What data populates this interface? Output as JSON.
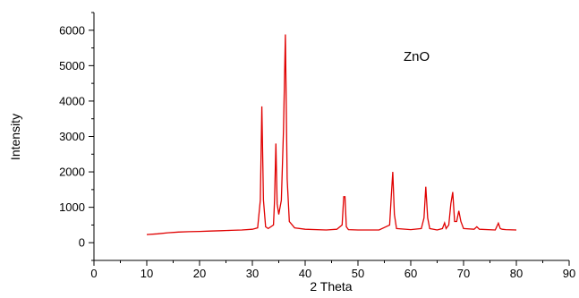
{
  "chart_data": {
    "type": "line",
    "xlabel": "2 Theta",
    "ylabel": "Intensity",
    "annotation": "ZnO",
    "xlim": [
      0,
      90
    ],
    "ylim": [
      -500,
      6500
    ],
    "x_ticks": [
      0,
      10,
      20,
      30,
      40,
      50,
      60,
      70,
      80,
      90
    ],
    "y_ticks": [
      0,
      1000,
      2000,
      3000,
      4000,
      5000,
      6000
    ],
    "grid": false,
    "line_color": "#e00000",
    "series": [
      {
        "x": [
          10,
          12,
          14,
          16,
          18,
          20,
          22,
          24,
          26,
          28,
          30,
          31,
          31.5,
          31.8,
          32.1,
          32.5,
          33,
          34,
          34.2,
          34.45,
          34.7,
          35,
          35.5,
          35.9,
          36.25,
          36.6,
          37,
          38,
          40,
          44,
          46,
          47,
          47.3,
          47.55,
          47.8,
          48.2,
          50,
          54,
          56,
          56.3,
          56.6,
          56.9,
          57.3,
          60,
          62,
          62.5,
          62.85,
          63.2,
          63.6,
          65,
          66,
          66.4,
          66.7,
          67.2,
          67.6,
          67.95,
          68.3,
          68.7,
          69.1,
          69.5,
          70,
          72,
          72.5,
          73,
          76,
          76.6,
          76.95,
          77.3,
          78,
          80
        ],
        "y": [
          230,
          250,
          280,
          300,
          310,
          320,
          330,
          340,
          350,
          360,
          380,
          420,
          1200,
          3850,
          1200,
          450,
          400,
          500,
          1200,
          2800,
          1100,
          800,
          1200,
          3200,
          5880,
          1800,
          600,
          420,
          380,
          360,
          380,
          500,
          1300,
          1300,
          450,
          370,
          360,
          360,
          500,
          1300,
          2000,
          800,
          400,
          370,
          400,
          700,
          1580,
          700,
          400,
          360,
          400,
          560,
          400,
          500,
          1100,
          1430,
          600,
          600,
          900,
          600,
          400,
          380,
          450,
          380,
          360,
          550,
          400,
          380,
          370,
          360
        ]
      }
    ]
  }
}
